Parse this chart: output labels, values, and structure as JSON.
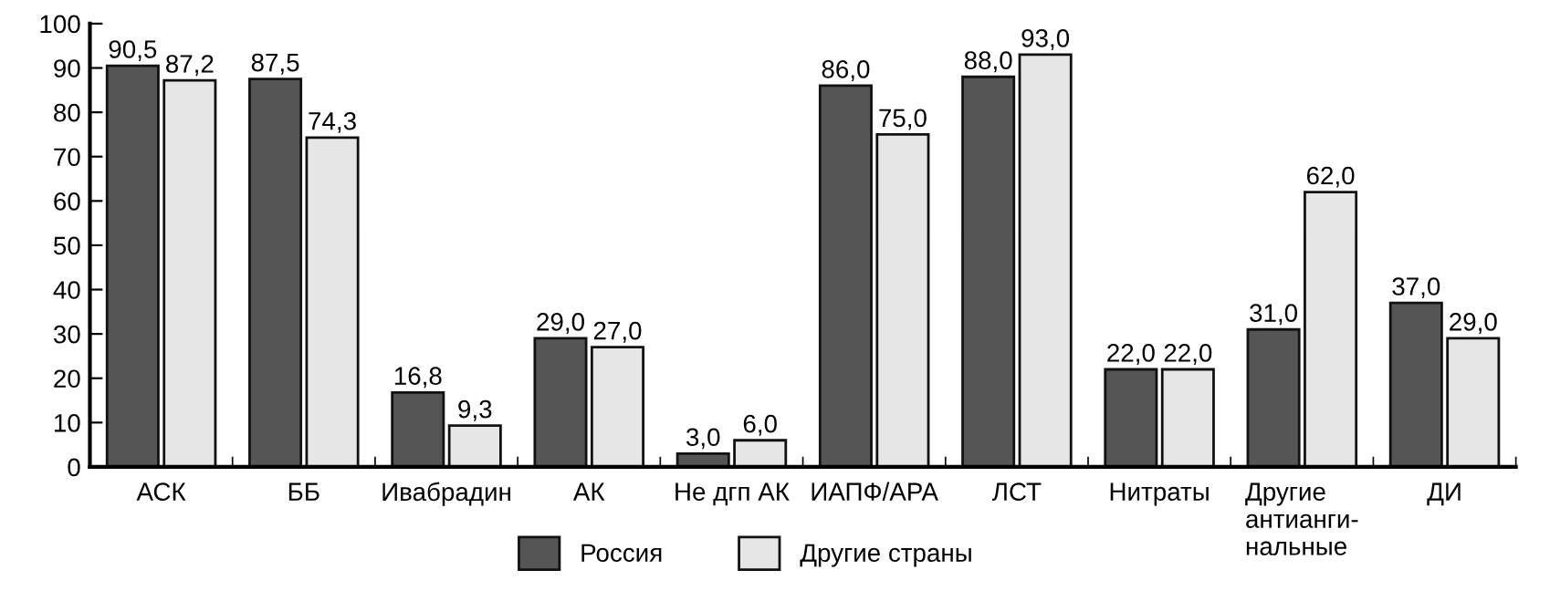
{
  "chart_data": {
    "type": "bar",
    "categories": [
      "АСК",
      "ББ",
      "Ивабрадин",
      "АК",
      "Не дгп АК",
      "ИАПФ/АРА",
      "ЛСТ",
      "Нитраты",
      "Другие\nантианги-\nнальные",
      "ДИ"
    ],
    "series": [
      {
        "name": "Россия",
        "color": "#555555",
        "values": [
          90.5,
          87.5,
          16.8,
          29.0,
          3.0,
          86.0,
          88.0,
          22.0,
          31.0,
          37.0
        ],
        "value_labels": [
          "90,5",
          "87,5",
          "16,8",
          "29,0",
          "3,0",
          "86,0",
          "88,0",
          "22,0",
          "31,0",
          "37,0"
        ]
      },
      {
        "name": "Другие страны",
        "color": "#e6e6e6",
        "values": [
          87.2,
          74.3,
          9.3,
          27.0,
          6.0,
          75.0,
          93.0,
          22.0,
          62.0,
          29.0
        ],
        "value_labels": [
          "87,2",
          "74,3",
          "9,3",
          "27,0",
          "6,0",
          "75,0",
          "93,0",
          "22,0",
          "62,0",
          "29,0"
        ]
      }
    ],
    "ylim": [
      0,
      100
    ],
    "yticks": [
      0,
      10,
      20,
      30,
      40,
      50,
      60,
      70,
      80,
      90,
      100
    ],
    "grid": false,
    "legend": "bottom"
  }
}
